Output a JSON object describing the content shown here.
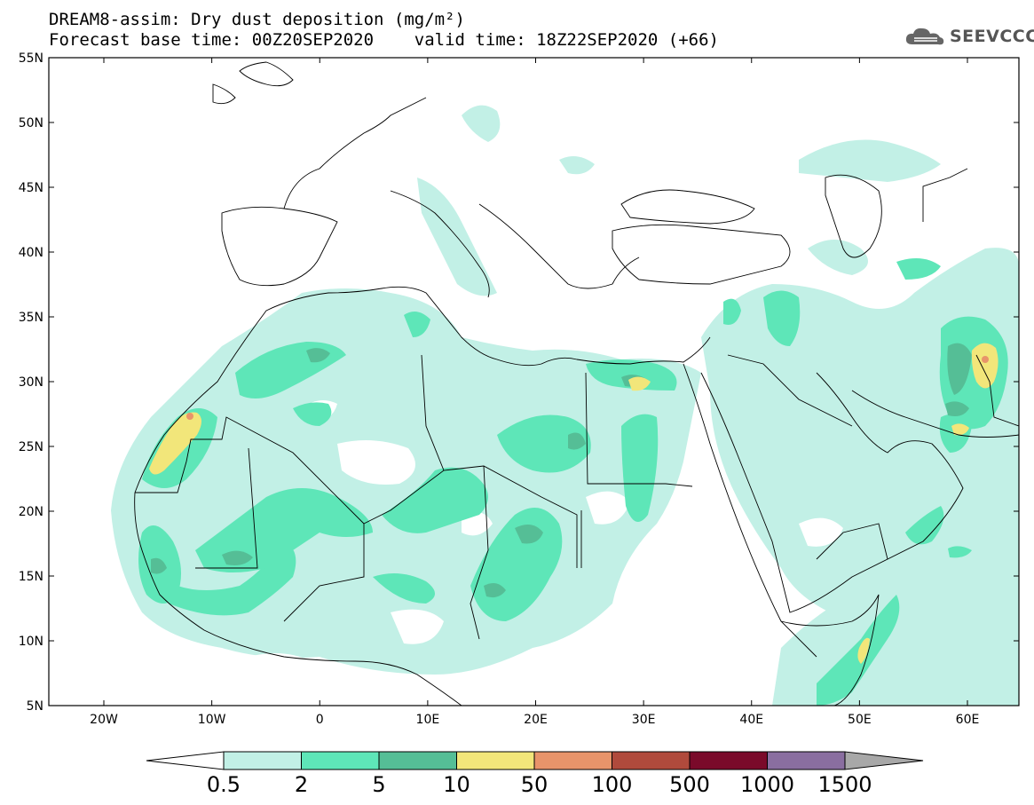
{
  "title_line1": "DREAM8-assim: Dry dust deposition (mg/m²)",
  "title_line2": "Forecast base time: 00Z20SEP2020    valid time: 18Z22SEP2020 (+66)",
  "logo_text": "SEEVCCC",
  "lat_labels": [
    "55N",
    "50N",
    "45N",
    "40N",
    "35N",
    "30N",
    "25N",
    "20N",
    "15N",
    "10N",
    "5N"
  ],
  "lon_labels": [
    "20W",
    "10W",
    "0",
    "10E",
    "20E",
    "30E",
    "40E",
    "50E",
    "60E"
  ],
  "colorbar": {
    "labels": [
      "0.5",
      "2",
      "5",
      "10",
      "50",
      "100",
      "500",
      "1000",
      "1500"
    ],
    "colors": [
      "#c2f0e6",
      "#5ee6b8",
      "#55be96",
      "#f2e67a",
      "#e8946a",
      "#b04a3c",
      "#7a0a2a",
      "#8a6ea0",
      "#a8a8a8"
    ]
  },
  "colors": {
    "land_fill": "#ffffff",
    "border": "#000000",
    "level1": "#c2f0e6",
    "level2": "#5ee6b8",
    "level3": "#55be96",
    "level4": "#f2e67a",
    "level5": "#e8946a"
  }
}
